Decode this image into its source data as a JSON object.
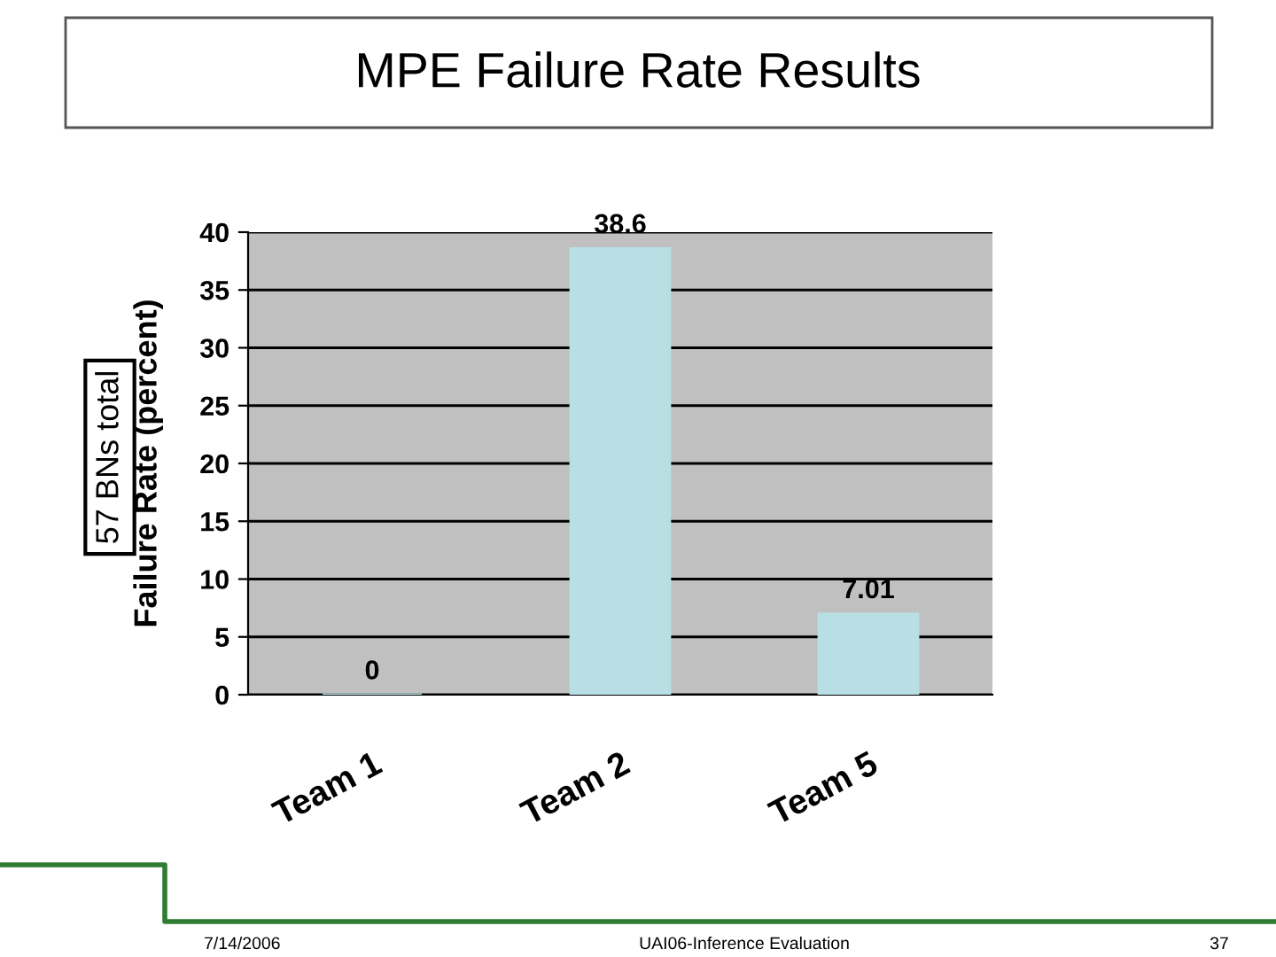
{
  "chart_data": {
    "type": "bar",
    "title": "MPE Failure Rate Results",
    "ylabel": "Failure Rate (percent)",
    "annotations": [
      "57 BNs total",
      "7/14/2006",
      "UAI06-Inference Evaluation",
      "37"
    ],
    "categories": [
      "Team 1",
      "Team 2",
      "Team 5"
    ],
    "values": [
      0,
      38.6,
      7.01
    ],
    "color": "#b8dfe3",
    "ylim": [
      0,
      40
    ],
    "yticks": [
      0,
      5,
      10,
      15,
      20,
      25,
      30,
      35,
      40
    ],
    "grid": "y",
    "data_labels": true,
    "legend": false
  }
}
